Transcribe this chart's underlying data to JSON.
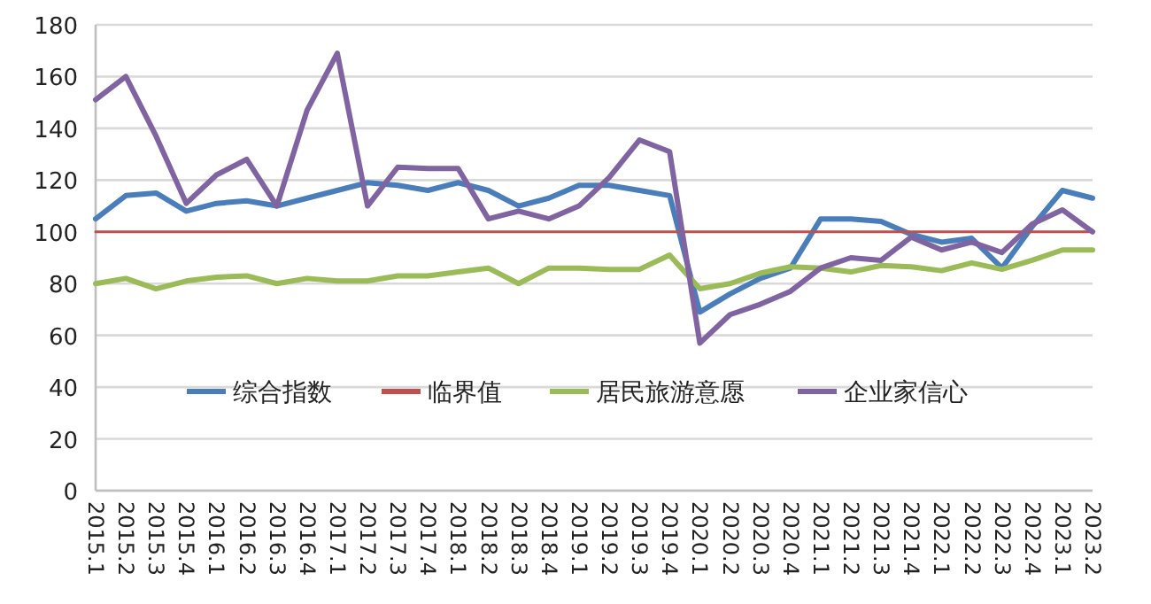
{
  "chart_data": {
    "type": "line",
    "categories": [
      "2015.1",
      "2015.2",
      "2015.3",
      "2015.4",
      "2016.1",
      "2016.2",
      "2016.3",
      "2016.4",
      "2017.1",
      "2017.2",
      "2017.3",
      "2017.4",
      "2018.1",
      "2018.2",
      "2018.3",
      "2018.4",
      "2019.1",
      "2019.2",
      "2019.3",
      "2019.4",
      "2020.1",
      "2020.2",
      "2020.3",
      "2020.4",
      "2021.1",
      "2021.2",
      "2021.3",
      "2021.4",
      "2022.1",
      "2022.2",
      "2022.3",
      "2022.4",
      "2023.1",
      "2023.2"
    ],
    "series": [
      {
        "name": "综合指数",
        "color": "#4a7ebb",
        "values": [
          105,
          114,
          115,
          108,
          111,
          112,
          110,
          113,
          116,
          119,
          118,
          116,
          119,
          116,
          110,
          113,
          118,
          118,
          116,
          114,
          69,
          76,
          82,
          86,
          105,
          105,
          104,
          99,
          96,
          97.5,
          86,
          102,
          116,
          113
        ]
      },
      {
        "name": "临界值",
        "color": "#c0504d",
        "values": [
          100,
          100,
          100,
          100,
          100,
          100,
          100,
          100,
          100,
          100,
          100,
          100,
          100,
          100,
          100,
          100,
          100,
          100,
          100,
          100,
          100,
          100,
          100,
          100,
          100,
          100,
          100,
          100,
          100,
          100,
          100,
          100,
          100,
          100
        ]
      },
      {
        "name": "居民旅游意愿",
        "color": "#9bbb59",
        "values": [
          80,
          82,
          78,
          81,
          82.5,
          83,
          80,
          82,
          81,
          81,
          83,
          83,
          84.5,
          86,
          80,
          86,
          86,
          85.5,
          85.5,
          91,
          78,
          80,
          84,
          86.5,
          86,
          84.5,
          87,
          86.5,
          85,
          88,
          85.5,
          89,
          93,
          93
        ]
      },
      {
        "name": "企业家信心",
        "color": "#8064a2",
        "values": [
          151,
          160,
          137,
          111,
          122,
          128,
          110,
          147,
          169,
          110,
          125,
          124.5,
          124.5,
          105,
          108,
          105,
          110,
          121,
          135.5,
          131,
          57,
          68,
          72,
          77,
          86,
          90,
          89,
          98,
          93,
          96,
          92,
          103,
          108.5,
          100
        ]
      }
    ],
    "ylim": [
      0,
      180
    ],
    "yticks": [
      0,
      20,
      40,
      60,
      80,
      100,
      120,
      140,
      160,
      180
    ],
    "grid": "y",
    "legend": "bottom"
  }
}
